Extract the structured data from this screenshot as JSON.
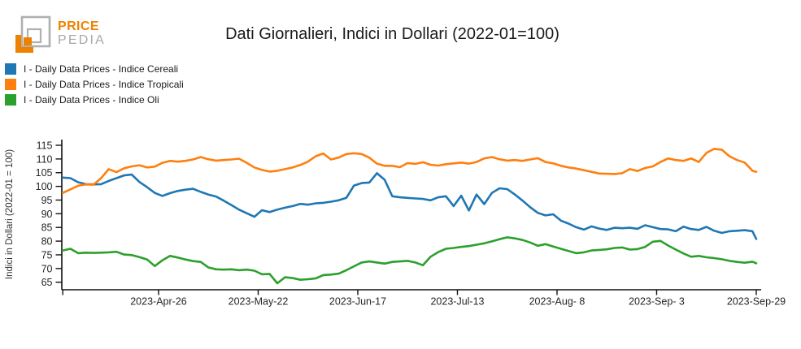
{
  "logo": {
    "brand_top": "PRICE",
    "brand_bottom": "PEDIA",
    "orange": "#EE8200",
    "gray": "#B0B0B0"
  },
  "header": {
    "title": "Dati Giornalieri, Indici in Dollari (2022-01=100)"
  },
  "chart_data": {
    "type": "line",
    "title": "Dati Giornalieri, Indici in Dollari (2022-01=100)",
    "xlabel": "",
    "ylabel": "Indici in Dollari (2022-01 = 100)",
    "ylim": [
      62,
      117
    ],
    "grid": false,
    "legend_position": "top-left-outside",
    "y_ticks": [
      65,
      70,
      75,
      80,
      85,
      90,
      95,
      100,
      105,
      110,
      115
    ],
    "x_ticks": [
      {
        "day": 0,
        "label": ""
      },
      {
        "day": 25,
        "label": "2023-Apr-26"
      },
      {
        "day": 51,
        "label": "2023-May-22"
      },
      {
        "day": 77,
        "label": "2023-Jun-17"
      },
      {
        "day": 103,
        "label": "2023-Jul-13"
      },
      {
        "day": 129,
        "label": "2023-Aug- 8"
      },
      {
        "day": 155,
        "label": "2023-Sep- 3"
      },
      {
        "day": 181,
        "label": "2023-Sep-29"
      }
    ],
    "days": [
      0,
      2,
      4,
      6,
      8,
      10,
      12,
      14,
      16,
      18,
      20,
      22,
      24,
      26,
      28,
      30,
      32,
      34,
      36,
      38,
      40,
      42,
      44,
      46,
      48,
      50,
      52,
      54,
      56,
      58,
      60,
      62,
      64,
      66,
      68,
      70,
      72,
      74,
      76,
      78,
      80,
      82,
      84,
      86,
      88,
      90,
      92,
      94,
      96,
      98,
      100,
      102,
      104,
      106,
      108,
      110,
      112,
      114,
      116,
      118,
      120,
      122,
      124,
      126,
      128,
      130,
      132,
      134,
      136,
      138,
      140,
      142,
      144,
      146,
      148,
      150,
      152,
      154,
      156,
      158,
      160,
      162,
      164,
      166,
      168,
      170,
      172,
      174,
      176,
      178,
      180,
      181
    ],
    "series": [
      {
        "name": "I - Daily Data Prices - Indice Cereali",
        "color": "#1f77b4",
        "values": [
          103.2,
          103.0,
          101.5,
          100.8,
          100.7,
          100.8,
          102.0,
          103.0,
          104.0,
          104.3,
          101.6,
          99.7,
          97.6,
          96.5,
          97.5,
          98.3,
          98.8,
          99.1,
          98.0,
          97.0,
          96.3,
          94.8,
          93.2,
          91.5,
          90.2,
          88.9,
          91.3,
          90.6,
          91.5,
          92.2,
          92.8,
          93.6,
          93.3,
          93.8,
          94.0,
          94.4,
          94.9,
          95.8,
          100.3,
          101.2,
          101.4,
          104.8,
          102.4,
          96.4,
          96.0,
          95.8,
          95.6,
          95.4,
          94.9,
          96.0,
          96.4,
          92.8,
          96.6,
          91.2,
          97.0,
          93.5,
          97.6,
          99.3,
          99.0,
          97.0,
          94.8,
          92.4,
          90.3,
          89.4,
          89.8,
          87.5,
          86.4,
          85.1,
          84.2,
          85.4,
          84.6,
          84.1,
          84.9,
          84.7,
          84.9,
          84.5,
          85.8,
          85.1,
          84.4,
          84.3,
          83.6,
          85.3,
          84.4,
          84.1,
          85.2,
          83.8,
          83.0,
          83.6,
          83.8,
          84.0,
          83.6,
          80.8
        ]
      },
      {
        "name": "I - Daily Data Prices - Indice Tropicali",
        "color": "#ff7f0e",
        "values": [
          97.6,
          98.9,
          100.2,
          100.7,
          100.6,
          103.0,
          106.3,
          105.2,
          106.6,
          107.3,
          107.7,
          106.9,
          107.2,
          108.6,
          109.3,
          109.0,
          109.3,
          109.8,
          110.7,
          109.9,
          109.4,
          109.6,
          109.8,
          110.1,
          108.6,
          106.9,
          106.0,
          105.4,
          105.7,
          106.3,
          106.9,
          107.8,
          109.0,
          111.0,
          112.0,
          109.8,
          110.5,
          111.8,
          112.1,
          111.8,
          110.5,
          108.3,
          107.5,
          107.5,
          107.0,
          108.5,
          108.2,
          108.8,
          107.9,
          107.6,
          108.1,
          108.4,
          108.7,
          108.3,
          108.9,
          110.2,
          110.7,
          109.9,
          109.4,
          109.6,
          109.3,
          109.8,
          110.3,
          108.9,
          108.4,
          107.5,
          106.9,
          106.5,
          105.9,
          105.3,
          104.7,
          104.6,
          104.5,
          104.8,
          106.3,
          105.6,
          106.7,
          107.3,
          108.9,
          110.2,
          109.6,
          109.3,
          110.2,
          108.9,
          112.2,
          113.7,
          113.4,
          111.0,
          109.6,
          108.7,
          105.7,
          105.3
        ]
      },
      {
        "name": "I - Daily Data Prices - Indice Oli",
        "color": "#2ca02c",
        "values": [
          76.6,
          77.2,
          75.6,
          75.8,
          75.7,
          75.8,
          75.9,
          76.1,
          75.1,
          74.9,
          74.2,
          73.3,
          70.9,
          73.0,
          74.6,
          74.0,
          73.3,
          72.7,
          72.4,
          70.4,
          69.7,
          69.6,
          69.7,
          69.4,
          69.6,
          69.2,
          67.9,
          68.0,
          64.6,
          66.8,
          66.5,
          65.9,
          66.1,
          66.4,
          67.6,
          67.8,
          68.1,
          69.4,
          70.8,
          72.2,
          72.6,
          72.2,
          71.8,
          72.4,
          72.6,
          72.8,
          72.2,
          71.2,
          74.3,
          76.0,
          77.2,
          77.5,
          77.9,
          78.2,
          78.7,
          79.2,
          79.9,
          80.7,
          81.4,
          81.0,
          80.4,
          79.5,
          78.3,
          78.9,
          78.0,
          77.2,
          76.4,
          75.6,
          75.9,
          76.6,
          76.8,
          77.0,
          77.5,
          77.7,
          76.9,
          77.1,
          77.9,
          79.8,
          80.1,
          78.4,
          76.9,
          75.5,
          74.3,
          74.6,
          74.1,
          73.8,
          73.4,
          72.8,
          72.4,
          72.1,
          72.5,
          71.9
        ]
      }
    ]
  }
}
